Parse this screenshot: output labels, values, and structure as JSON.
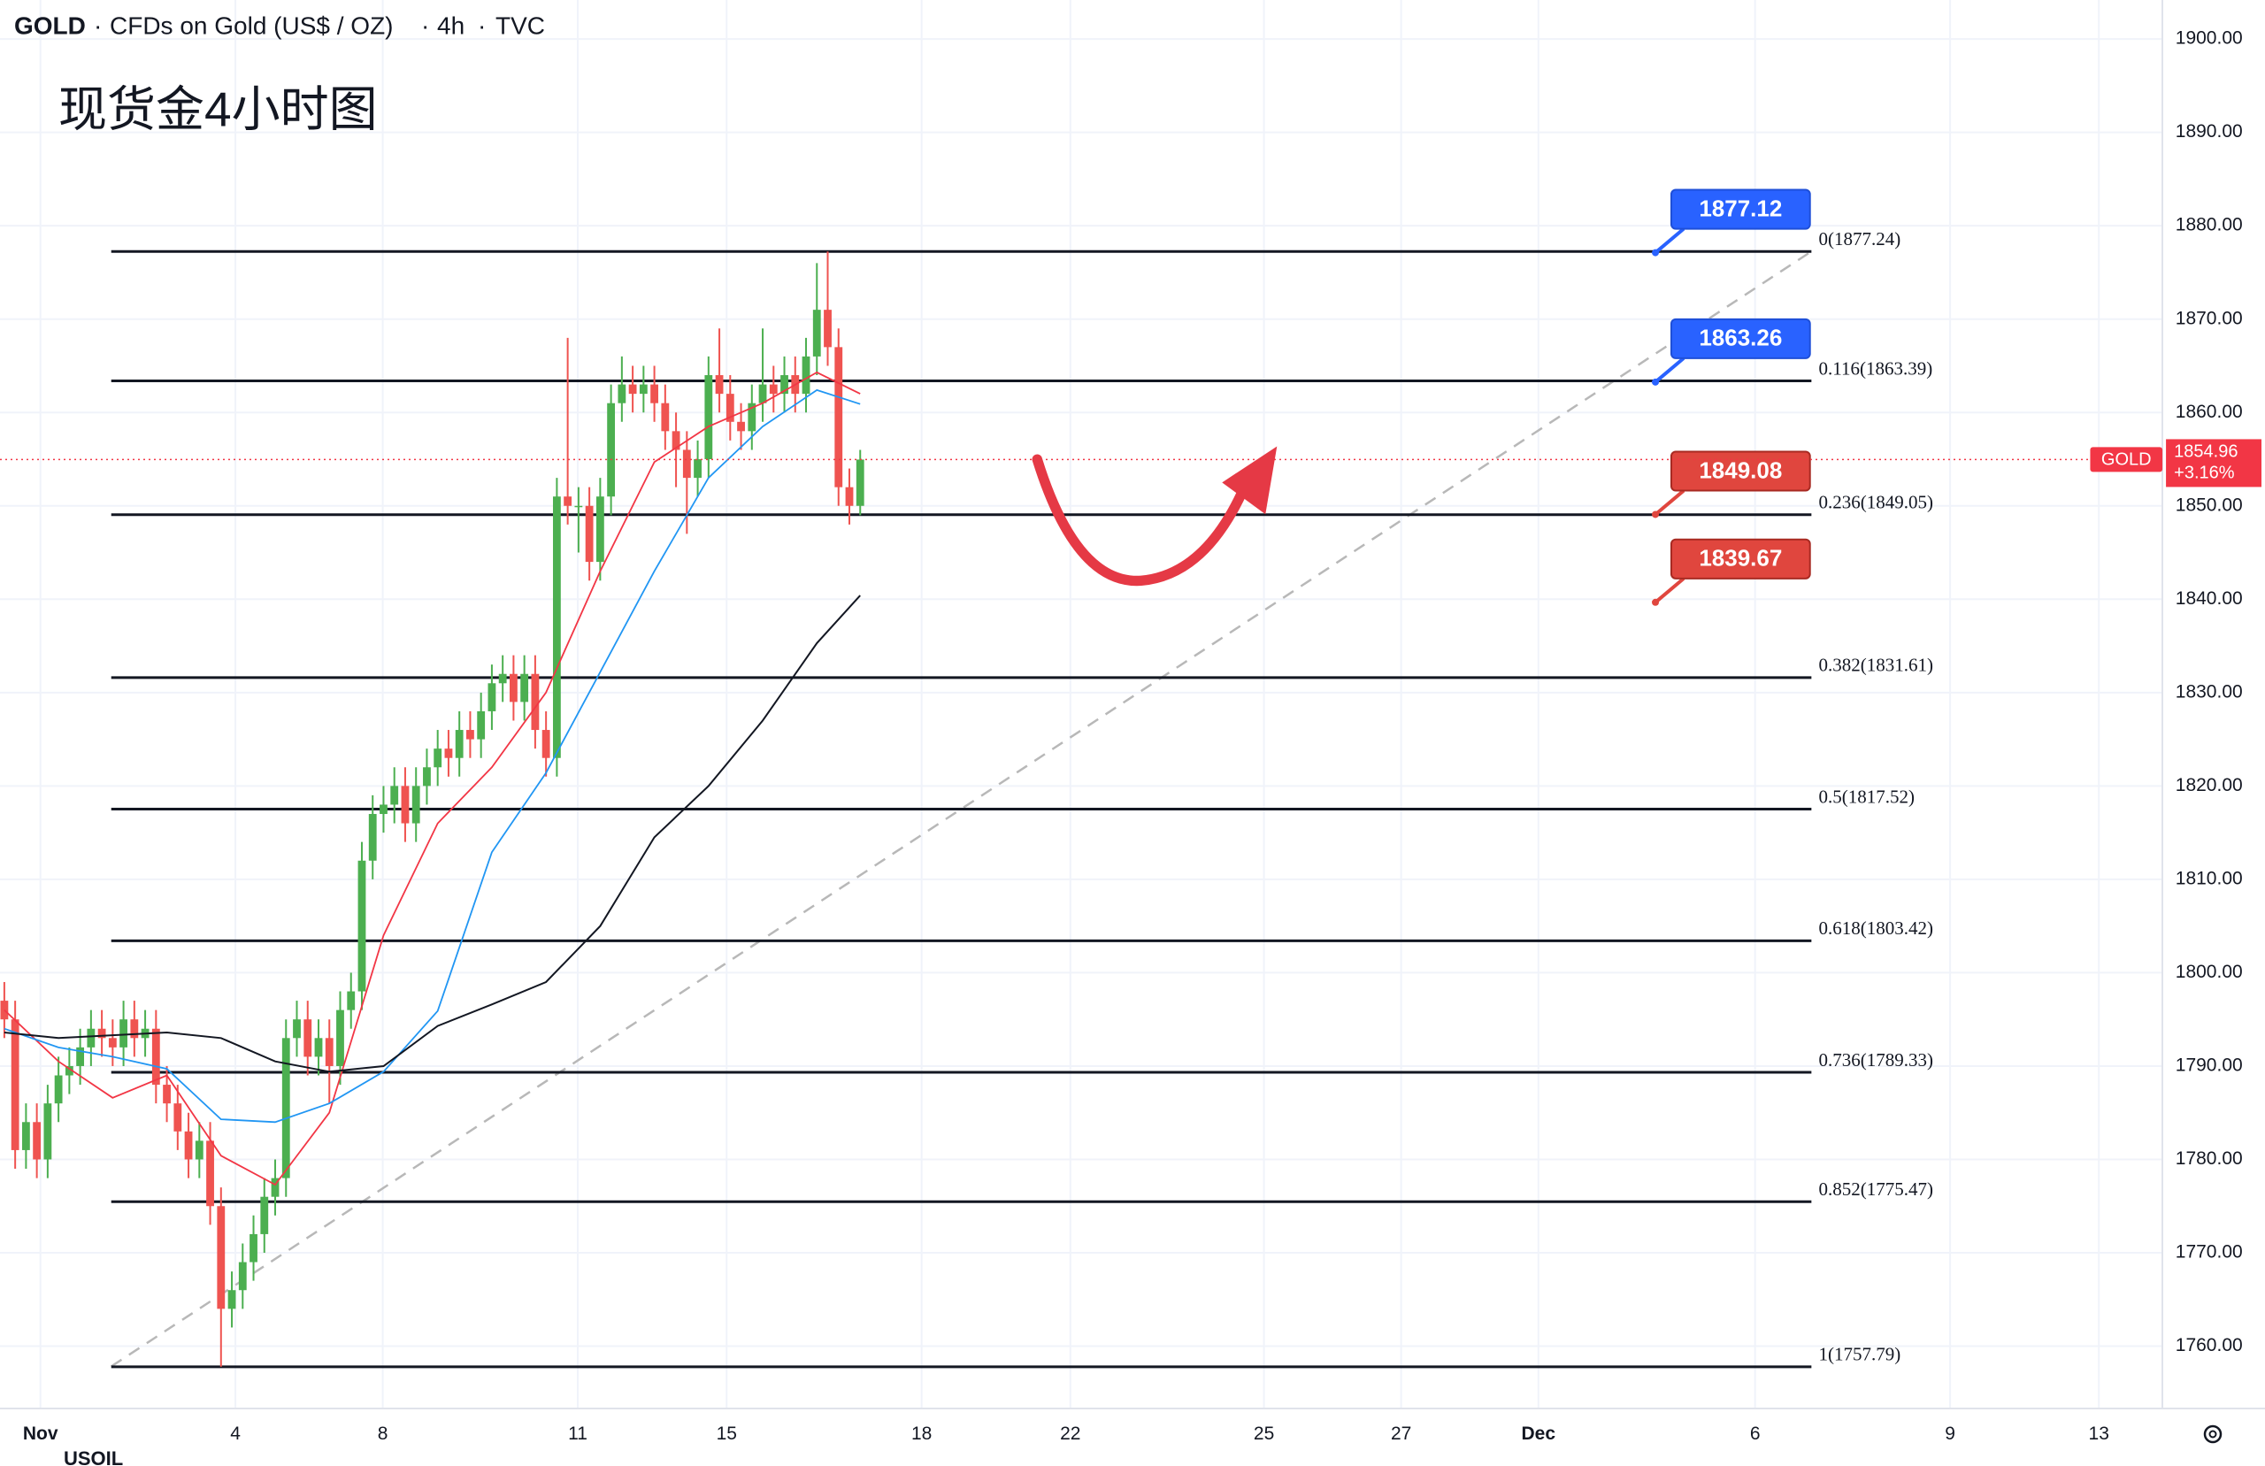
{
  "chart_data": {
    "type": "candlestick",
    "symbol": "GOLD",
    "description": "CFDs on Gold (US$ / OZ)",
    "interval": "4h",
    "exchange": "TVC",
    "title": "现货金4小时图",
    "footer_text": "USOIL",
    "open": [
      1797,
      1795,
      1781,
      1784,
      1780,
      1786,
      1789,
      1790,
      1792,
      1794,
      1793,
      1792,
      1795,
      1793,
      1794,
      1788,
      1786,
      1783,
      1780,
      1782,
      1775,
      1764,
      1766,
      1769,
      1772,
      1776,
      1778,
      1793,
      1795,
      1791,
      1793,
      1790,
      1796,
      1798,
      1812,
      1817,
      1818,
      1820,
      1816,
      1820,
      1822,
      1824,
      1823,
      1826,
      1825,
      1828,
      1831,
      1832,
      1829,
      1832,
      1826,
      1823,
      1851,
      1850,
      1850,
      1844,
      1851,
      1861,
      1863,
      1862,
      1863,
      1861,
      1858,
      1856,
      1853,
      1855,
      1864,
      1862,
      1859,
      1858,
      1861,
      1863,
      1862,
      1864,
      1862,
      1866,
      1871,
      1867,
      1852,
      1850
    ],
    "high": [
      1799,
      1797,
      1786,
      1786,
      1788,
      1791,
      1792,
      1794,
      1796,
      1796,
      1795,
      1797,
      1797,
      1796,
      1796,
      1790,
      1788,
      1785,
      1784,
      1784,
      1777,
      1768,
      1771,
      1774,
      1778,
      1780,
      1795,
      1797,
      1797,
      1795,
      1795,
      1798,
      1800,
      1814,
      1819,
      1820,
      1822,
      1822,
      1822,
      1824,
      1826,
      1826,
      1828,
      1828,
      1830,
      1833,
      1834,
      1834,
      1834,
      1834,
      1828,
      1853,
      1868,
      1852,
      1852,
      1853,
      1863,
      1866,
      1865,
      1865,
      1865,
      1863,
      1860,
      1858,
      1857,
      1866,
      1869,
      1864,
      1861,
      1863,
      1869,
      1865,
      1866,
      1866,
      1868,
      1876,
      1877.24,
      1869,
      1854,
      1856
    ],
    "low": [
      1793,
      1779,
      1779,
      1778,
      1778,
      1784,
      1787,
      1788,
      1790,
      1791,
      1790,
      1790,
      1791,
      1791,
      1786,
      1784,
      1781,
      1778,
      1778,
      1773,
      1757.8,
      1762,
      1764,
      1767,
      1770,
      1774,
      1776,
      1791,
      1789,
      1789,
      1786,
      1788,
      1794,
      1796,
      1810,
      1815,
      1816,
      1814,
      1814,
      1818,
      1820,
      1821,
      1821,
      1823,
      1823,
      1826,
      1829,
      1827,
      1827,
      1824,
      1821,
      1821,
      1848,
      1845,
      1842,
      1842,
      1849,
      1859,
      1860,
      1860,
      1859,
      1856,
      1852,
      1847,
      1851,
      1853,
      1860,
      1857,
      1856,
      1856,
      1859,
      1860,
      1860,
      1860,
      1860,
      1864,
      1865,
      1850,
      1848,
      1849
    ],
    "close": [
      1795,
      1781,
      1784,
      1780,
      1786,
      1789,
      1790,
      1792,
      1794,
      1793,
      1792,
      1795,
      1793,
      1794,
      1788,
      1786,
      1783,
      1780,
      1782,
      1775,
      1764,
      1766,
      1769,
      1772,
      1776,
      1778,
      1793,
      1795,
      1791,
      1793,
      1790,
      1796,
      1798,
      1812,
      1817,
      1818,
      1820,
      1816,
      1820,
      1822,
      1824,
      1823,
      1826,
      1825,
      1828,
      1831,
      1832,
      1829,
      1832,
      1826,
      1823,
      1851,
      1850,
      1850,
      1844,
      1851,
      1861,
      1863,
      1862,
      1863,
      1861,
      1858,
      1856,
      1853,
      1855,
      1864,
      1862,
      1859,
      1858,
      1861,
      1863,
      1862,
      1864,
      1862,
      1866,
      1871,
      1867,
      1852,
      1850,
      1854.96
    ],
    "up_color": "#4caf50",
    "down_color": "#ef5350",
    "moving_averages": [
      {
        "color": "#f23645",
        "x": [
          0,
          5,
          10,
          15,
          20,
          25,
          30,
          35,
          40,
          45,
          50,
          55,
          60,
          65,
          70,
          75,
          79
        ],
        "values": [
          1796,
          1790.5,
          1786.6,
          1789,
          1780.4,
          1777.3,
          1785,
          1804,
          1816,
          1822,
          1830,
          1843,
          1854.7,
          1858.5,
          1861,
          1864.3,
          1862
        ]
      },
      {
        "color": "#2196f3",
        "x": [
          0,
          5,
          10,
          15,
          20,
          25,
          30,
          35,
          40,
          45,
          50,
          55,
          60,
          65,
          70,
          75,
          79
        ],
        "values": [
          1794,
          1792,
          1791,
          1789.7,
          1784.3,
          1784,
          1786,
          1789.4,
          1795.9,
          1812.9,
          1821.4,
          1832.2,
          1843,
          1853,
          1858.5,
          1862.4,
          1860.9
        ]
      },
      {
        "color": "#131722",
        "x": [
          0,
          5,
          10,
          15,
          20,
          25,
          30,
          35,
          40,
          45,
          50,
          55,
          60,
          65,
          70,
          75,
          79
        ],
        "values": [
          1793.6,
          1793,
          1793.3,
          1793.6,
          1793,
          1790.5,
          1789.4,
          1790,
          1794.3,
          1796.6,
          1799,
          1805,
          1814.5,
          1820,
          1827,
          1835.3,
          1840.4
        ]
      }
    ],
    "fib_levels": [
      {
        "value": 1877.24,
        "label": "0(1877.24)"
      },
      {
        "value": 1863.39,
        "label": "0.116(1863.39)"
      },
      {
        "value": 1849.05,
        "label": "0.236(1849.05)"
      },
      {
        "value": 1831.61,
        "label": "0.382(1831.61)"
      },
      {
        "value": 1817.52,
        "label": "0.5(1817.52)"
      },
      {
        "value": 1803.42,
        "label": "0.618(1803.42)"
      },
      {
        "value": 1789.33,
        "label": "0.736(1789.33)"
      },
      {
        "value": 1775.47,
        "label": "0.852(1775.47)"
      },
      {
        "value": 1757.79,
        "label": "1(1757.79)"
      }
    ],
    "callouts": [
      {
        "value": 1877.12,
        "color": "#2962ff"
      },
      {
        "value": 1863.26,
        "color": "#2962ff"
      },
      {
        "value": 1849.08,
        "color": "#e0463e"
      },
      {
        "value": 1839.67,
        "color": "#e0463e"
      }
    ],
    "last_price": 1854.96,
    "change": {
      "value": 3.16,
      "label": "+3.16%"
    },
    "price_color": "#f23645",
    "xlim": [
      -0.4,
      199.2
    ],
    "xticks": [
      {
        "value": 3.33,
        "label": "Nov"
      },
      {
        "value": 21.33,
        "label": "4"
      },
      {
        "value": 34.93,
        "label": "8"
      },
      {
        "value": 52.93,
        "label": "11"
      },
      {
        "value": 66.67,
        "label": "15"
      },
      {
        "value": 84.67,
        "label": "18"
      },
      {
        "value": 98.4,
        "label": "22"
      },
      {
        "value": 116.27,
        "label": "25"
      },
      {
        "value": 128.93,
        "label": "27"
      },
      {
        "value": 141.6,
        "label": "Dec"
      },
      {
        "value": 161.6,
        "label": "6"
      },
      {
        "value": 179.6,
        "label": "9"
      },
      {
        "value": 193.33,
        "label": "13"
      }
    ],
    "ylim": [
      1753.34,
      1904.18
    ],
    "yticks": [
      {
        "value": 1760,
        "label": "1760.00"
      },
      {
        "value": 1770,
        "label": "1770.00"
      },
      {
        "value": 1780,
        "label": "1780.00"
      },
      {
        "value": 1790,
        "label": "1790.00"
      },
      {
        "value": 1800,
        "label": "1800.00"
      },
      {
        "value": 1810,
        "label": "1810.00"
      },
      {
        "value": 1820,
        "label": "1820.00"
      },
      {
        "value": 1830,
        "label": "1830.00"
      },
      {
        "value": 1840,
        "label": "1840.00"
      },
      {
        "value": 1850,
        "label": "1850.00"
      },
      {
        "value": 1860,
        "label": "1860.00"
      },
      {
        "value": 1870,
        "label": "1870.00"
      },
      {
        "value": 1880,
        "label": "1880.00"
      },
      {
        "value": 1890,
        "label": "1890.00"
      },
      {
        "value": 1900,
        "label": "1900.00"
      }
    ],
    "grid": true
  }
}
